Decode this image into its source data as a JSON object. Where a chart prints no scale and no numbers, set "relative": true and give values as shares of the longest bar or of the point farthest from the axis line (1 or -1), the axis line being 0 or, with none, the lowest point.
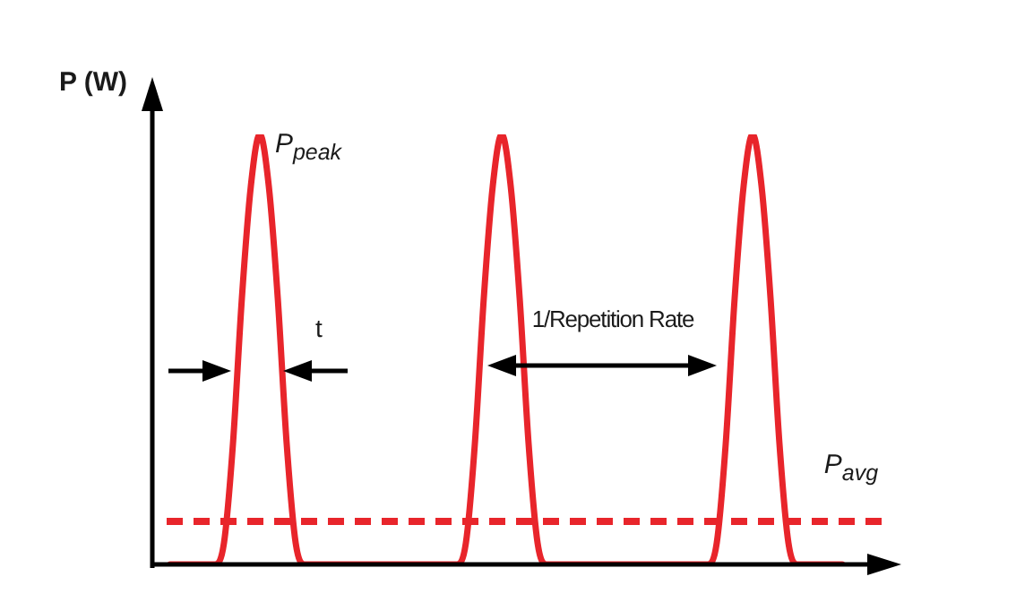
{
  "chart_data": {
    "type": "line",
    "relative": true,
    "ylabel": "P (W)",
    "categories": [
      null,
      null,
      null,
      null,
      null,
      null,
      null,
      null,
      null,
      null,
      null,
      null,
      null,
      null,
      null,
      null,
      null,
      null,
      null,
      null,
      null,
      null,
      null,
      null,
      null,
      null,
      null,
      null,
      null,
      null,
      null,
      null,
      null,
      null,
      null,
      null,
      null,
      null,
      null,
      null,
      null,
      null,
      null,
      null,
      null,
      null,
      null,
      null,
      null,
      null,
      null,
      null,
      null,
      null,
      null,
      null,
      null,
      null,
      null,
      null,
      null,
      null,
      null,
      null,
      null,
      null,
      null,
      null,
      null,
      null,
      null,
      null,
      null,
      null,
      null,
      null
    ],
    "series": [
      {
        "color": "#e8252b",
        "values": [
          0,
          0,
          0,
          0,
          0,
          0,
          0.05,
          0.28,
          0.62,
          0.88,
          1,
          0.88,
          0.62,
          0.28,
          0.05,
          0,
          0,
          0,
          0,
          0,
          0,
          0,
          0,
          0,
          0,
          0,
          0,
          0,
          0,
          0,
          0,
          0,
          0,
          0.05,
          0.28,
          0.62,
          0.88,
          1,
          0.88,
          0.62,
          0.28,
          0.05,
          0,
          0,
          0,
          0,
          0,
          0,
          0,
          0,
          0,
          0,
          0,
          0,
          0,
          0,
          0,
          0,
          0,
          0,
          0,
          0.05,
          0.28,
          0.62,
          0.88,
          1,
          0.88,
          0.62,
          0.28,
          0.05,
          0,
          0,
          0,
          0,
          0,
          0
        ]
      }
    ],
    "ref_lines": [
      {
        "axis": "y",
        "value": 0.1,
        "label": "P$_{avg}$",
        "color": "#e8252b",
        "line_style": "dashed"
      }
    ],
    "annotations": [
      "P$_{peak}$",
      "t",
      "1/Repetition Rate"
    ],
    "marker": "none",
    "line_style": "solid",
    "legend": false
  }
}
